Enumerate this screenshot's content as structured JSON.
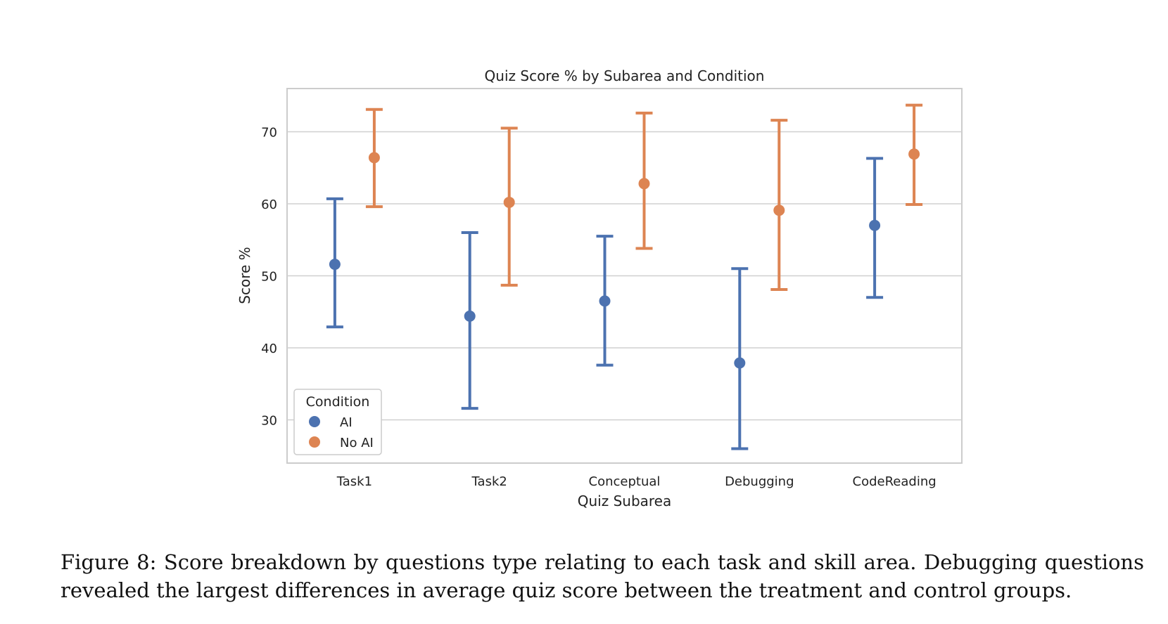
{
  "chart_data": {
    "type": "scatter",
    "title": "Quiz Score % by Subarea and Condition",
    "xlabel": "Quiz Subarea",
    "ylabel": "Score %",
    "categories": [
      "Task1",
      "Task2",
      "Conceptual",
      "Debugging",
      "CodeReading"
    ],
    "ylim": [
      24.0,
      76.0
    ],
    "yticks": [
      30,
      40,
      50,
      60,
      70
    ],
    "grid": "horizontal",
    "legend": {
      "title": "Condition",
      "position": "bottom-left"
    },
    "series": [
      {
        "name": "AI",
        "color": "#4c72b0",
        "values": [
          51.6,
          44.4,
          46.5,
          37.9,
          57.0
        ],
        "ci_low": [
          42.9,
          31.6,
          37.6,
          26.0,
          47.0
        ],
        "ci_high": [
          60.7,
          56.0,
          55.5,
          51.0,
          66.3
        ]
      },
      {
        "name": "No AI",
        "color": "#dd8452",
        "values": [
          66.4,
          60.2,
          62.8,
          59.1,
          66.9
        ],
        "ci_low": [
          59.6,
          48.7,
          53.8,
          48.1,
          59.9
        ],
        "ci_high": [
          73.1,
          70.5,
          72.6,
          71.6,
          73.7
        ]
      }
    ]
  },
  "caption": {
    "text": "Figure 8: Score breakdown by questions type relating to each task and skill area. Debugging questions revealed the largest differences in average quiz score between the treatment and control groups."
  }
}
